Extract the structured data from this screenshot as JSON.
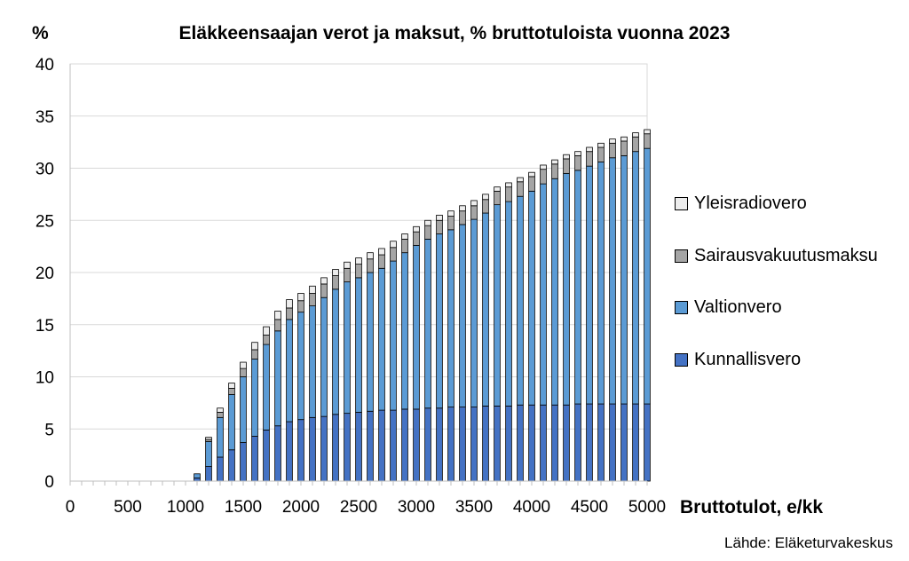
{
  "chart_data": {
    "type": "bar",
    "stacked": true,
    "title": "Eläkkeensaajan verot ja maksut, % bruttotuloista vuonna 2023",
    "ylabel": "%",
    "xlabel": "Bruttotulot, e/kk",
    "source": "Lähde: Eläketurvakeskus",
    "xlim": [
      0,
      5000
    ],
    "ylim": [
      0,
      40
    ],
    "x_ticks": [
      0,
      500,
      1000,
      1500,
      2000,
      2500,
      3000,
      3500,
      4000,
      4500,
      5000
    ],
    "y_ticks": [
      0,
      5,
      10,
      15,
      20,
      25,
      30,
      35,
      40
    ],
    "grid": true,
    "legend_position": "right",
    "x": [
      1100,
      1200,
      1300,
      1400,
      1500,
      1600,
      1700,
      1800,
      1900,
      2000,
      2100,
      2200,
      2300,
      2400,
      2500,
      2600,
      2700,
      2800,
      2900,
      3000,
      3100,
      3200,
      3300,
      3400,
      3500,
      3600,
      3700,
      3800,
      3900,
      4000,
      4100,
      4200,
      4300,
      4400,
      4500,
      4600,
      4700,
      4800,
      4900,
      5000
    ],
    "series": [
      {
        "name": "Kunnallisvero",
        "color": "#4472c4",
        "values": [
          0.3,
          1.4,
          2.3,
          3.0,
          3.7,
          4.3,
          4.9,
          5.3,
          5.7,
          5.9,
          6.1,
          6.2,
          6.4,
          6.5,
          6.6,
          6.7,
          6.8,
          6.8,
          6.9,
          6.9,
          7.0,
          7.0,
          7.1,
          7.1,
          7.1,
          7.2,
          7.2,
          7.2,
          7.3,
          7.3,
          7.3,
          7.3,
          7.3,
          7.4,
          7.4,
          7.4,
          7.4,
          7.4,
          7.4,
          7.4
        ]
      },
      {
        "name": "Valtionvero",
        "color": "#5b9bd5",
        "values": [
          0.4,
          2.4,
          3.8,
          5.3,
          6.3,
          7.4,
          8.2,
          9.1,
          9.8,
          10.3,
          10.7,
          11.4,
          12.0,
          12.6,
          12.9,
          13.3,
          13.6,
          14.3,
          15.0,
          15.7,
          16.2,
          16.7,
          17.0,
          17.5,
          18.0,
          18.5,
          19.3,
          19.6,
          20.0,
          20.5,
          21.2,
          21.7,
          22.2,
          22.4,
          22.8,
          23.2,
          23.6,
          23.8,
          24.2,
          24.5
        ]
      },
      {
        "name": "Sairausvakuutusmaksu",
        "color": "#a5a5a5",
        "values": [
          0.0,
          0.2,
          0.5,
          0.6,
          0.8,
          0.9,
          0.9,
          1.1,
          1.1,
          1.1,
          1.2,
          1.3,
          1.3,
          1.3,
          1.3,
          1.3,
          1.3,
          1.3,
          1.3,
          1.3,
          1.3,
          1.3,
          1.3,
          1.3,
          1.3,
          1.3,
          1.3,
          1.4,
          1.4,
          1.4,
          1.4,
          1.4,
          1.4,
          1.4,
          1.4,
          1.4,
          1.4,
          1.4,
          1.4,
          1.4
        ]
      },
      {
        "name": "Yleisradiovero",
        "color": "#ededed",
        "values": [
          0.0,
          0.2,
          0.4,
          0.5,
          0.6,
          0.7,
          0.8,
          0.8,
          0.8,
          0.7,
          0.7,
          0.6,
          0.6,
          0.6,
          0.6,
          0.6,
          0.6,
          0.6,
          0.5,
          0.5,
          0.5,
          0.5,
          0.5,
          0.5,
          0.5,
          0.5,
          0.4,
          0.4,
          0.4,
          0.4,
          0.4,
          0.4,
          0.4,
          0.4,
          0.4,
          0.4,
          0.4,
          0.4,
          0.4,
          0.4
        ]
      }
    ]
  }
}
